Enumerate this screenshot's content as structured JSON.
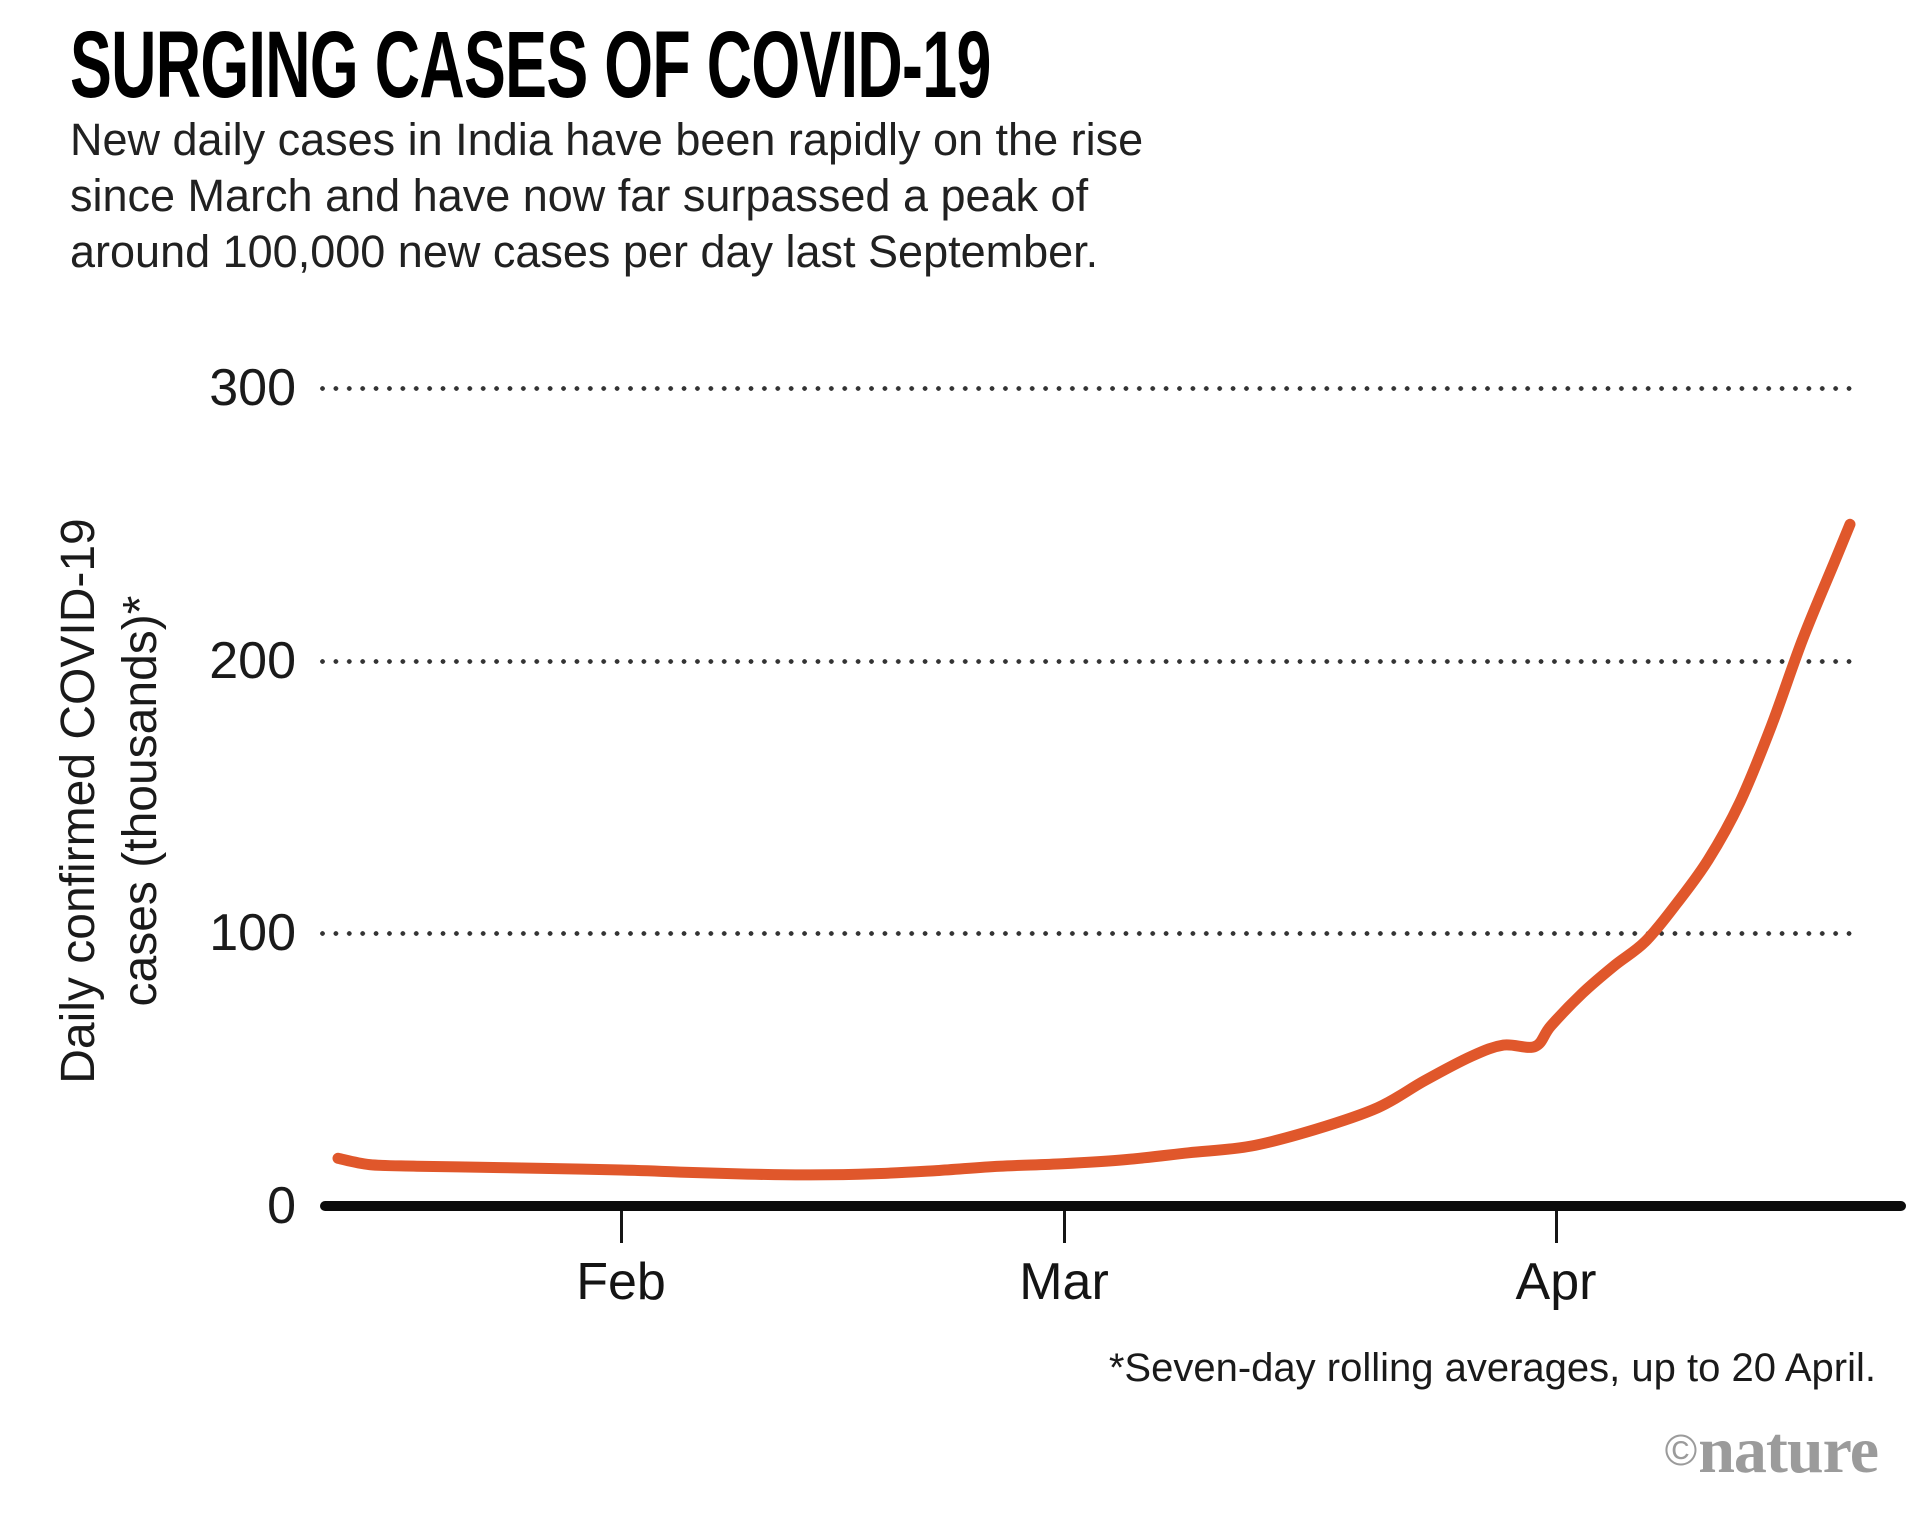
{
  "header": {
    "title": "SURGING CASES OF COVID-19",
    "subtitle_lines": [
      "New daily cases in India have been rapidly on the rise",
      "since March and have now far surpassed a peak of",
      "around 100,000 new cases per day last September."
    ]
  },
  "chart_data": {
    "type": "line",
    "title": "SURGING CASES OF COVID-19",
    "ylabel": "Daily confirmed COVID-19 cases (thousands)*",
    "ylabel_lines": [
      "Daily confirmed COVID-19",
      "cases (thousands)*"
    ],
    "ylim": [
      0,
      300
    ],
    "y_tick_labels": [
      "300",
      "200",
      "100",
      "0"
    ],
    "grid": {
      "style": "dotted-horizontal",
      "at_values": [
        100,
        200,
        300
      ]
    },
    "x_range": {
      "start": "14 Jan",
      "end": "20 Apr",
      "total_days": 96
    },
    "x_ticks": [
      {
        "label": "Feb",
        "day": 18
      },
      {
        "label": "Mar",
        "day": 46
      },
      {
        "label": "Apr",
        "day": 77
      }
    ],
    "line_color": "#E0572B",
    "series": [
      {
        "name": "India daily confirmed COVID-19 cases, seven-day rolling average (thousands)",
        "points": [
          {
            "date": "14 Jan",
            "day": 0,
            "value": 17.5
          },
          {
            "date": "16 Jan",
            "day": 2,
            "value": 15.2
          },
          {
            "date": "19 Jan",
            "day": 5,
            "value": 14.6
          },
          {
            "date": "23 Jan",
            "day": 9,
            "value": 14.2
          },
          {
            "date": "27 Jan",
            "day": 13,
            "value": 13.8
          },
          {
            "date": "1 Feb",
            "day": 18,
            "value": 13.2
          },
          {
            "date": "5 Feb",
            "day": 22,
            "value": 12.4
          },
          {
            "date": "9 Feb",
            "day": 26,
            "value": 11.7
          },
          {
            "date": "13 Feb",
            "day": 30,
            "value": 11.4
          },
          {
            "date": "17 Feb",
            "day": 34,
            "value": 11.8
          },
          {
            "date": "21 Feb",
            "day": 38,
            "value": 13.0
          },
          {
            "date": "25 Feb",
            "day": 42,
            "value": 14.6
          },
          {
            "date": "1 Mar",
            "day": 46,
            "value": 15.5
          },
          {
            "date": "5 Mar",
            "day": 50,
            "value": 17.0
          },
          {
            "date": "9 Mar",
            "day": 54,
            "value": 19.5
          },
          {
            "date": "13 Mar",
            "day": 58,
            "value": 22.0
          },
          {
            "date": "17 Mar",
            "day": 62,
            "value": 28.0
          },
          {
            "date": "21 Mar",
            "day": 66,
            "value": 36.0
          },
          {
            "date": "24 Mar",
            "day": 69,
            "value": 46.0
          },
          {
            "date": "27 Mar",
            "day": 72,
            "value": 55.0
          },
          {
            "date": "29 Mar",
            "day": 74,
            "value": 59.0
          },
          {
            "date": "31 Mar",
            "day": 76,
            "value": 58.5
          },
          {
            "date": "1 Apr",
            "day": 77,
            "value": 66.0
          },
          {
            "date": "3 Apr",
            "day": 79,
            "value": 78.0
          },
          {
            "date": "5 Apr",
            "day": 81,
            "value": 88.0
          },
          {
            "date": "7 Apr",
            "day": 83,
            "value": 97.0
          },
          {
            "date": "9 Apr",
            "day": 85,
            "value": 111
          },
          {
            "date": "11 Apr",
            "day": 87,
            "value": 127
          },
          {
            "date": "13 Apr",
            "day": 89,
            "value": 148
          },
          {
            "date": "15 Apr",
            "day": 91,
            "value": 176
          },
          {
            "date": "17 Apr",
            "day": 93,
            "value": 208
          },
          {
            "date": "19 Apr",
            "day": 95,
            "value": 236
          },
          {
            "date": "20 Apr",
            "day": 96,
            "value": 250
          }
        ]
      }
    ]
  },
  "footnote": "*Seven-day rolling averages, up to 20 April.",
  "credit": {
    "copyright": "©",
    "brand": "nature"
  }
}
